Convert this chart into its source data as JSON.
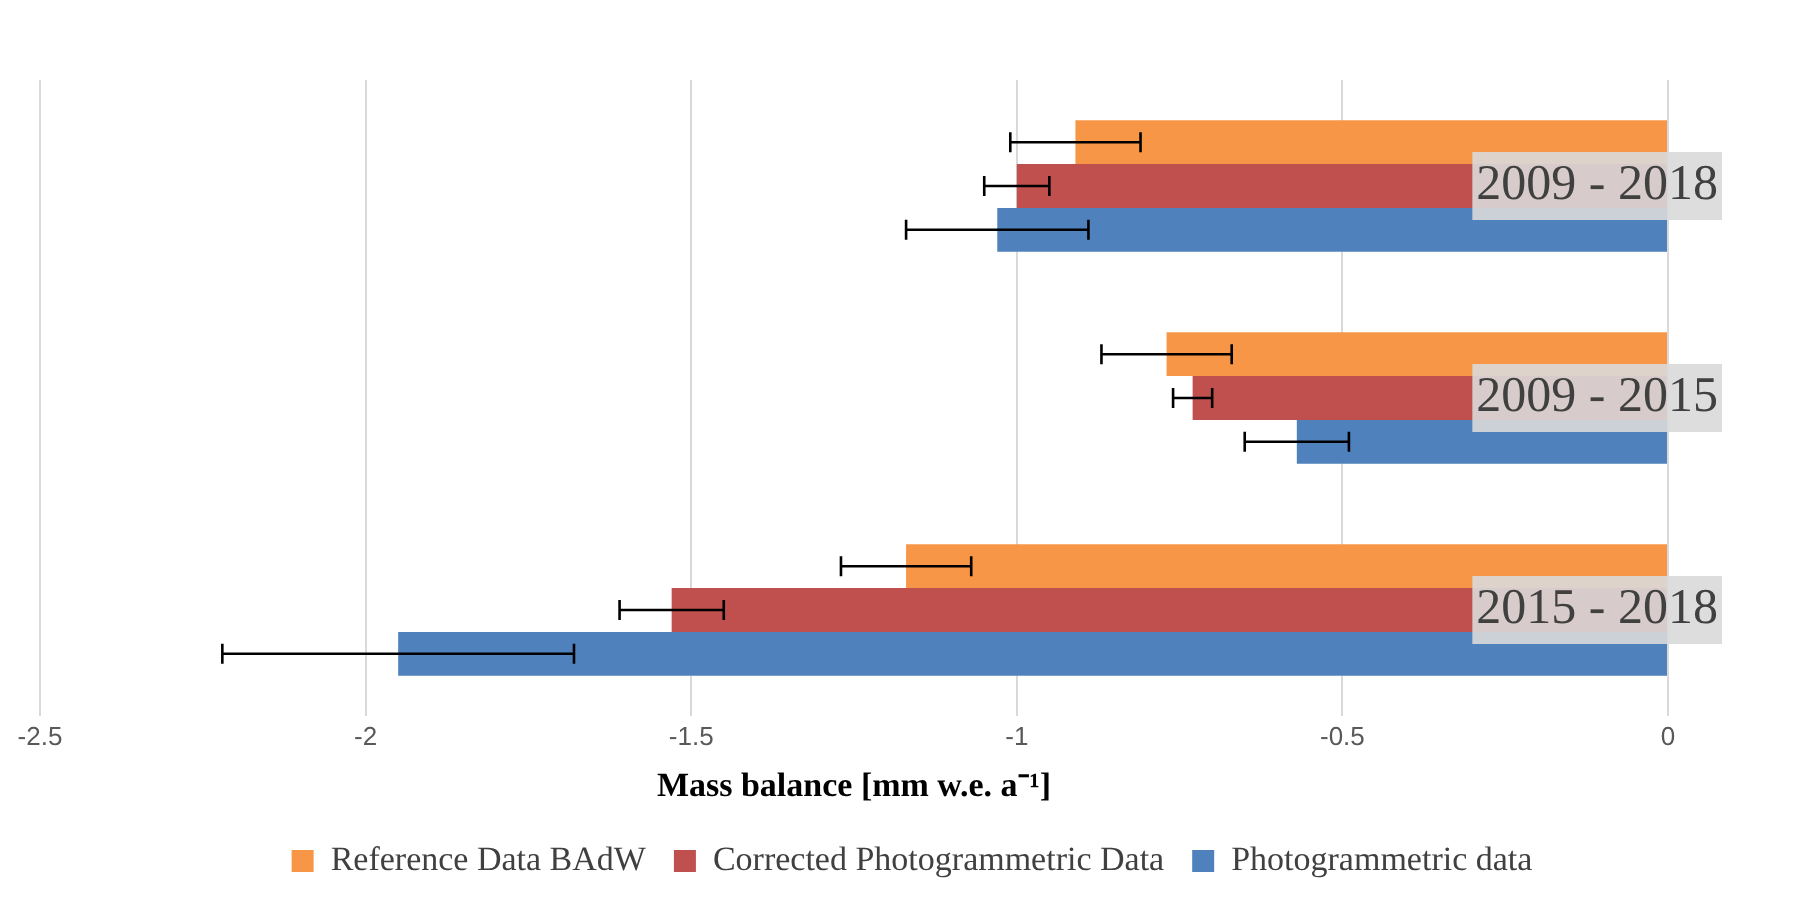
{
  "chart_data": {
    "type": "bar",
    "orientation": "horizontal",
    "xlabel": "Mass balance [mm w.e. a⁻¹]",
    "categories": [
      "2009 - 2018",
      "2009 - 2015",
      "2015 - 2018"
    ],
    "series": [
      {
        "name": "Reference Data BAdW",
        "color": "#f79646",
        "values": [
          -0.91,
          -0.77,
          -1.17
        ],
        "errors": [
          0.1,
          0.1,
          0.1
        ]
      },
      {
        "name": "Corrected Photogrammetric Data",
        "color": "#c0504d",
        "values": [
          -1.0,
          -0.73,
          -1.53
        ],
        "errors": [
          0.05,
          0.03,
          0.08
        ]
      },
      {
        "name": "Photogrammetric data",
        "color": "#4f81bd",
        "values": [
          -1.03,
          -0.57,
          -1.95
        ],
        "errors": [
          0.14,
          0.08,
          0.27
        ]
      }
    ],
    "xlim": [
      -2.5,
      0
    ],
    "xticks": [
      -2.5,
      -2,
      -1.5,
      -1,
      -0.5,
      0
    ],
    "grid": "x",
    "legend": "bottom"
  }
}
